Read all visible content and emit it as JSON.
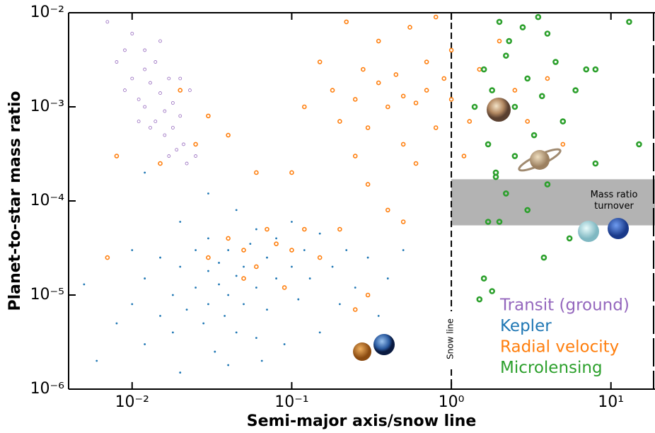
{
  "chart_data": {
    "type": "scatter",
    "xlabel": "Semi-major axis/snow line",
    "ylabel": "Planet-to-star mass ratio",
    "xscale": "log",
    "yscale": "log",
    "xlim": [
      0.004,
      18.5
    ],
    "ylim": [
      1e-06,
      0.01
    ],
    "xticks": [
      {
        "value": 0.01,
        "label": "10⁻²"
      },
      {
        "value": 0.1,
        "label": "10⁻¹"
      },
      {
        "value": 1,
        "label": "10⁰"
      },
      {
        "value": 10,
        "label": "10¹"
      }
    ],
    "yticks": [
      {
        "value": 1e-06,
        "label": "10⁻⁶"
      },
      {
        "value": 1e-05,
        "label": "10⁻⁵"
      },
      {
        "value": 0.0001,
        "label": "10⁻⁴"
      },
      {
        "value": 0.001,
        "label": "10⁻³"
      },
      {
        "value": 0.01,
        "label": "10⁻²"
      }
    ],
    "legend": "lower right",
    "snow_line": {
      "x": 1,
      "label": "Snow line"
    },
    "band": {
      "x_start": 1,
      "ylim": [
        5.5e-05,
        0.00017
      ],
      "color": "#b3b3b3",
      "label": [
        "Mass ratio",
        "turnover"
      ]
    },
    "series": [
      {
        "name": "Transit (ground)",
        "color": "#9467bd",
        "marker": "open",
        "x": [
          0.008,
          0.009,
          0.01,
          0.011,
          0.012,
          0.012,
          0.013,
          0.014,
          0.014,
          0.015,
          0.016,
          0.016,
          0.017,
          0.018,
          0.018,
          0.019,
          0.02,
          0.021,
          0.022,
          0.012,
          0.01,
          0.007,
          0.015,
          0.02,
          0.023,
          0.013,
          0.025,
          0.017,
          0.009,
          0.011
        ],
        "values": [
          0.003,
          0.0015,
          0.002,
          0.0012,
          0.0025,
          0.001,
          0.0018,
          0.0007,
          0.003,
          0.0014,
          0.0005,
          0.0009,
          0.002,
          0.0006,
          0.0011,
          0.00035,
          0.0008,
          0.0004,
          0.00025,
          0.004,
          0.006,
          0.008,
          0.005,
          0.002,
          0.0015,
          0.0006,
          0.0003,
          0.0003,
          0.004,
          0.0007
        ]
      },
      {
        "name": "Kepler",
        "color": "#1f77b4",
        "marker": "filled",
        "x": [
          0.006,
          0.008,
          0.01,
          0.012,
          0.012,
          0.015,
          0.015,
          0.018,
          0.018,
          0.02,
          0.02,
          0.022,
          0.025,
          0.025,
          0.028,
          0.03,
          0.03,
          0.03,
          0.033,
          0.035,
          0.035,
          0.038,
          0.04,
          0.04,
          0.045,
          0.045,
          0.05,
          0.05,
          0.055,
          0.06,
          0.06,
          0.065,
          0.07,
          0.07,
          0.08,
          0.08,
          0.09,
          0.1,
          0.1,
          0.11,
          0.12,
          0.13,
          0.15,
          0.15,
          0.18,
          0.2,
          0.22,
          0.25,
          0.3,
          0.35,
          0.4,
          0.5,
          0.02,
          0.03,
          0.045,
          0.005,
          0.01,
          0.04,
          0.06,
          0.012
        ],
        "values": [
          2e-06,
          5e-06,
          8e-06,
          3e-06,
          1.5e-05,
          6e-06,
          2.5e-05,
          1e-05,
          4e-06,
          2e-05,
          1.5e-06,
          7e-06,
          1.2e-05,
          3e-05,
          5e-06,
          1.8e-05,
          8e-06,
          4e-05,
          2.5e-06,
          1.3e-05,
          2.2e-05,
          6e-06,
          1e-05,
          3e-05,
          1.6e-05,
          4e-06,
          2e-05,
          8e-06,
          3.5e-05,
          1.2e-05,
          5e-05,
          2e-06,
          2.5e-05,
          7e-06,
          1.5e-05,
          4e-05,
          3e-06,
          2e-05,
          6e-05,
          9e-06,
          3e-05,
          1.5e-05,
          4e-06,
          4.5e-05,
          2e-05,
          8e-06,
          3e-05,
          1.2e-05,
          2.5e-05,
          6e-06,
          1.5e-05,
          3e-05,
          6e-05,
          0.00012,
          8e-05,
          1.3e-05,
          3e-05,
          1.8e-06,
          3.5e-06,
          0.0002
        ]
      },
      {
        "name": "Radial velocity",
        "color": "#ff7f0e",
        "marker": "open",
        "x": [
          0.007,
          0.008,
          0.015,
          0.02,
          0.025,
          0.03,
          0.03,
          0.04,
          0.04,
          0.05,
          0.05,
          0.06,
          0.07,
          0.08,
          0.09,
          0.1,
          0.1,
          0.12,
          0.12,
          0.15,
          0.15,
          0.18,
          0.2,
          0.2,
          0.22,
          0.25,
          0.25,
          0.28,
          0.3,
          0.3,
          0.35,
          0.35,
          0.4,
          0.4,
          0.45,
          0.5,
          0.5,
          0.55,
          0.6,
          0.6,
          0.7,
          0.7,
          0.8,
          0.8,
          0.9,
          1,
          1,
          1.2,
          1.3,
          1.5,
          1.8,
          2,
          2.5,
          3,
          4,
          5,
          0.06,
          0.3,
          0.5,
          0.25
        ],
        "values": [
          2.5e-05,
          0.0003,
          0.00025,
          0.0015,
          0.0004,
          0.0008,
          2.5e-05,
          4e-05,
          0.0005,
          3e-05,
          1.5e-05,
          2e-05,
          5e-05,
          3.5e-05,
          1.2e-05,
          3e-05,
          0.0002,
          5e-05,
          0.001,
          2.5e-05,
          0.003,
          0.0015,
          0.0007,
          5e-05,
          0.008,
          0.0012,
          0.0003,
          0.0025,
          0.0006,
          0.00015,
          0.0018,
          0.005,
          0.001,
          8e-05,
          0.0022,
          0.0013,
          0.0004,
          0.007,
          0.0011,
          0.00025,
          0.003,
          0.0015,
          0.0006,
          0.009,
          0.002,
          0.004,
          0.0012,
          0.0003,
          0.0007,
          0.0025,
          0.001,
          0.005,
          0.0015,
          0.0007,
          0.002,
          0.0004,
          0.0002,
          1e-05,
          6e-05,
          7e-06
        ]
      },
      {
        "name": "Microlensing",
        "color": "#2ca02c",
        "marker": "open",
        "x": [
          1.6,
          1.7,
          1.8,
          1.9,
          2,
          2,
          2.2,
          2.3,
          2.5,
          2.5,
          2.8,
          3,
          3,
          3.3,
          3.5,
          3.7,
          3.8,
          4,
          4,
          4.5,
          5,
          5.5,
          6,
          7,
          8,
          8,
          13,
          15,
          1.5,
          1.6,
          1.8,
          1.4,
          1.7,
          2.2,
          1.9
        ],
        "values": [
          0.0025,
          0.0004,
          0.0015,
          0.0002,
          0.008,
          6e-05,
          0.00012,
          0.005,
          0.001,
          0.0003,
          0.007,
          0.002,
          8e-05,
          0.0005,
          0.009,
          0.0013,
          2.5e-05,
          0.006,
          0.00015,
          0.003,
          0.0007,
          4e-05,
          0.0015,
          0.0025,
          0.0025,
          0.00025,
          0.008,
          0.0004,
          9e-06,
          1.5e-05,
          1.1e-05,
          0.001,
          6e-05,
          0.0035,
          0.00018
        ]
      }
    ]
  }
}
